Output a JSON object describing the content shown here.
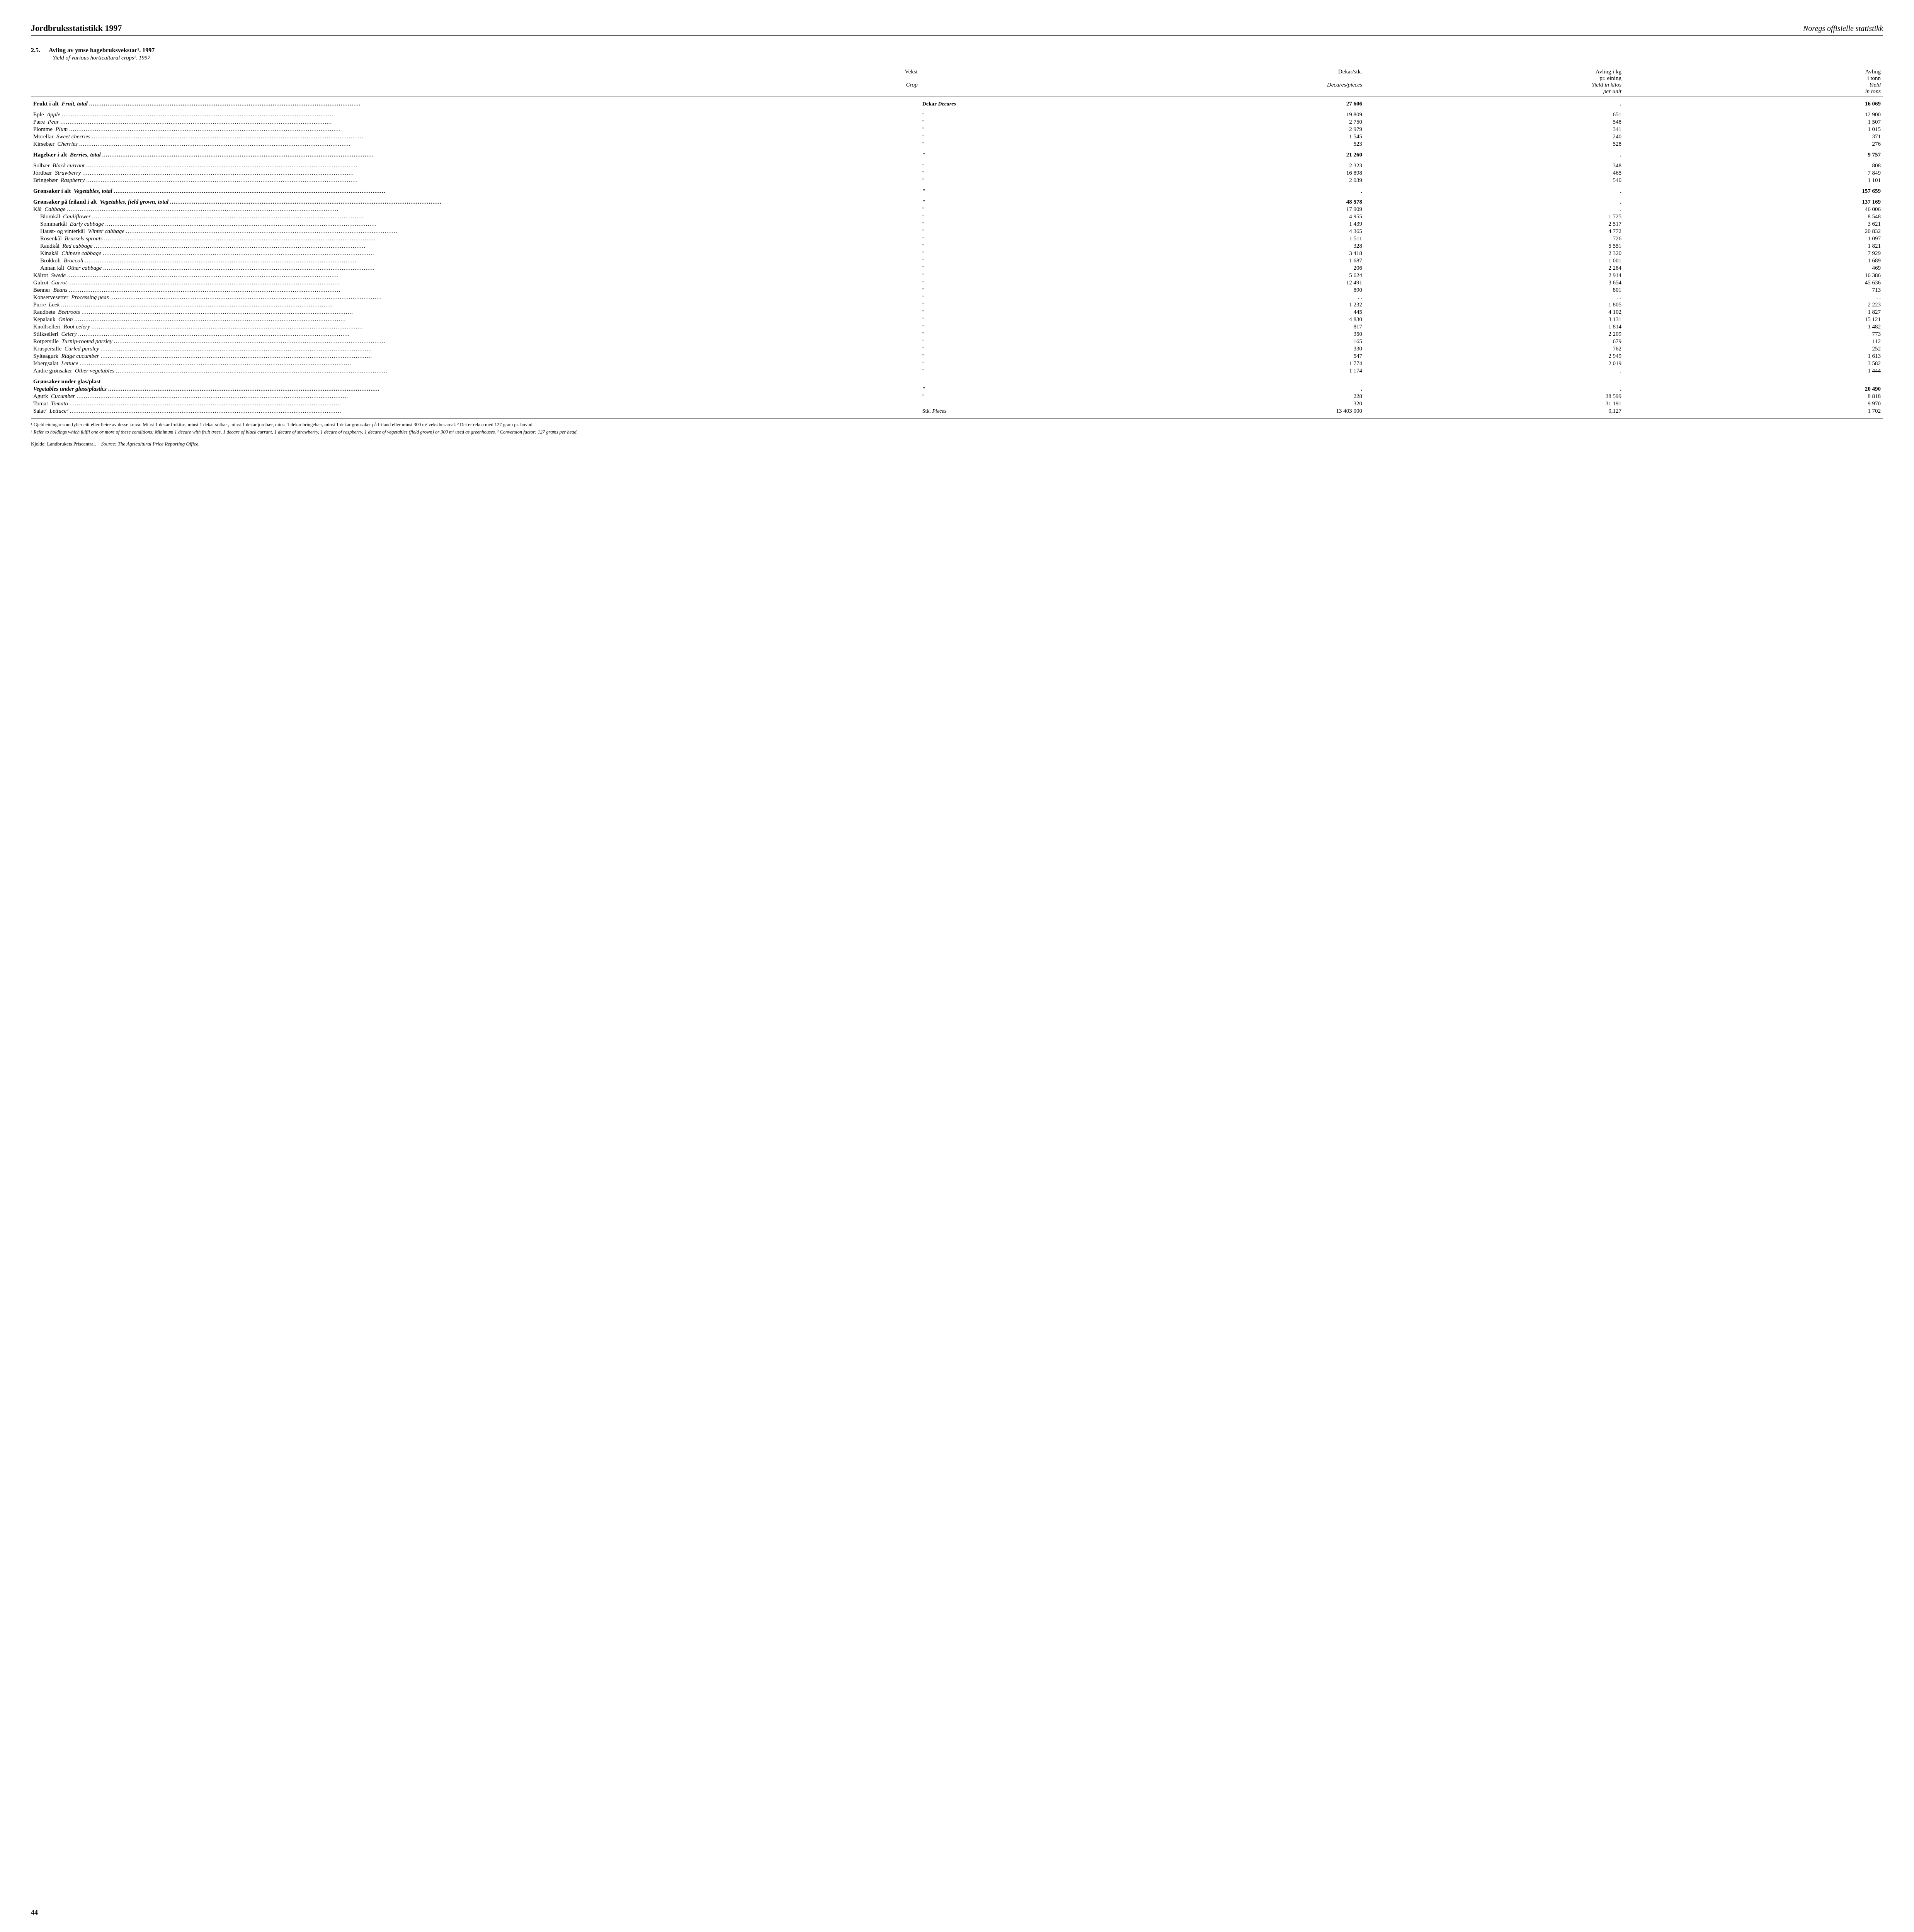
{
  "header": {
    "left": "Jordbruksstatistikk 1997",
    "right": "Noregs offisielle statistikk"
  },
  "section": {
    "number": "2.5.",
    "title_no": "Avling av ymse hagebruksvekstar¹. 1997",
    "title_en": "Yield of various horticultural crops¹. 1997"
  },
  "columns": {
    "crop_no": "Vekst",
    "crop_en": "Crop",
    "c1_no": "Dekar/stk.",
    "c1_en": "Decares/pieces",
    "c2_no": "Avling i kg pr. eining",
    "c2_en": "Yield in kilos per unit",
    "c3_no": "Avling i tonn",
    "c3_en": "Yield in tons"
  },
  "unit_labels": {
    "dekar": "Dekar",
    "decares": "Decares",
    "stk": "Stk.",
    "pieces": "Pieces",
    "ditto": "\""
  },
  "rows": [
    {
      "key": "fruit_total",
      "bold": true,
      "spacer": true,
      "no": "Frukt i alt",
      "en": "Fruit, total",
      "unit": "dekar",
      "c1": "27 606",
      "c2": ".",
      "c3": "16 069"
    },
    {
      "key": "apple",
      "spacer": true,
      "no": "Eple",
      "en": "Apple",
      "unit": "ditto",
      "c1": "19 809",
      "c2": "651",
      "c3": "12 900"
    },
    {
      "key": "pear",
      "no": "Pære",
      "en": "Pear",
      "unit": "ditto",
      "c1": "2 750",
      "c2": "548",
      "c3": "1 507"
    },
    {
      "key": "plum",
      "no": "Plomme",
      "en": "Plum",
      "unit": "ditto",
      "c1": "2 979",
      "c2": "341",
      "c3": "1 015"
    },
    {
      "key": "sweetcherry",
      "no": "Morellar",
      "en": "Sweet cherries",
      "unit": "ditto",
      "c1": "1 545",
      "c2": "240",
      "c3": "371"
    },
    {
      "key": "cherry",
      "no": "Kirsebær",
      "en": "Cherries",
      "unit": "ditto",
      "c1": "523",
      "c2": "528",
      "c3": "276"
    },
    {
      "key": "berries_total",
      "bold": true,
      "spacer": true,
      "no": "Hagebær i alt",
      "en": "Berries, total",
      "unit": "ditto",
      "c1": "21 260",
      "c2": ".",
      "c3": "9 757"
    },
    {
      "key": "blackcurrant",
      "spacer": true,
      "no": "Solbær",
      "en": "Black currant",
      "unit": "ditto",
      "c1": "2 323",
      "c2": "348",
      "c3": "808"
    },
    {
      "key": "strawberry",
      "no": "Jordbær",
      "en": "Strawberry",
      "unit": "ditto",
      "c1": "16 898",
      "c2": "465",
      "c3": "7 849"
    },
    {
      "key": "raspberry",
      "no": "Bringebær",
      "en": "Raspberry",
      "unit": "ditto",
      "c1": "2 039",
      "c2": "540",
      "c3": "1 101"
    },
    {
      "key": "veg_total",
      "bold": true,
      "spacer": true,
      "no": "Grønsaker i alt",
      "en": "Vegetables, total",
      "unit": "ditto",
      "c1": ".",
      "c2": ".",
      "c3": "157 659"
    },
    {
      "key": "veg_field_total",
      "bold": true,
      "spacer": true,
      "no": "Grønsaker på friland i alt",
      "en": "Vegetables, field grown, total",
      "unit": "ditto",
      "c1": "48 578",
      "c2": ".",
      "c3": "137 169"
    },
    {
      "key": "cabbage",
      "no": "Kål",
      "en": "Cabbage",
      "unit": "ditto",
      "c1": "17 909",
      "c2": ".",
      "c3": "46 006"
    },
    {
      "key": "cauliflower",
      "indent": true,
      "no": "Blomkål",
      "en": "Cauliflower",
      "unit": "ditto",
      "c1": "4 955",
      "c2": "1 725",
      "c3": "8 548"
    },
    {
      "key": "earlycabbage",
      "indent": true,
      "no": "Sommarkål",
      "en": "Early cabbage",
      "unit": "ditto",
      "c1": "1 439",
      "c2": "2 517",
      "c3": "3 621"
    },
    {
      "key": "wintercabbage",
      "indent": true,
      "no": "Haust- og vinterkål",
      "en": "Winter cabbage",
      "unit": "ditto",
      "c1": "4 365",
      "c2": "4 772",
      "c3": "20 832"
    },
    {
      "key": "brussels",
      "indent": true,
      "no": "Rosenkål",
      "en": "Brussels sprouts",
      "unit": "ditto",
      "c1": "1 511",
      "c2": "726",
      "c3": "1 097"
    },
    {
      "key": "redcabbage",
      "indent": true,
      "no": "Raudkål",
      "en": "Red cabbage",
      "unit": "ditto",
      "c1": "328",
      "c2": "5 551",
      "c3": "1 821"
    },
    {
      "key": "chinesecabbage",
      "indent": true,
      "no": "Kinakål",
      "en": "Chinese cabbage",
      "unit": "ditto",
      "c1": "3 418",
      "c2": "2 320",
      "c3": "7 929"
    },
    {
      "key": "broccoli",
      "indent": true,
      "no": "Brokkoli",
      "en": "Broccoli",
      "unit": "ditto",
      "c1": "1 687",
      "c2": "1 001",
      "c3": "1 689"
    },
    {
      "key": "othercabbage",
      "indent": true,
      "no": "Annan kål",
      "en": "Other cabbage",
      "unit": "ditto",
      "c1": "206",
      "c2": "2 284",
      "c3": "469"
    },
    {
      "key": "swede",
      "no": "Kålrot",
      "en": "Swede",
      "unit": "ditto",
      "c1": "5 624",
      "c2": "2 914",
      "c3": "16 386"
    },
    {
      "key": "carrot",
      "no": "Gulrot",
      "en": "Carrot",
      "unit": "ditto",
      "c1": "12 491",
      "c2": "3 654",
      "c3": "45 636"
    },
    {
      "key": "beans",
      "no": "Bønner",
      "en": "Beans",
      "unit": "ditto",
      "c1": "890",
      "c2": "801",
      "c3": "713"
    },
    {
      "key": "peas",
      "no": "Konserveserter",
      "en": "Processing peas",
      "unit": "ditto",
      "c1": ". .",
      "c2": ". .",
      "c3": ". ."
    },
    {
      "key": "leek",
      "no": "Purre",
      "en": "Leek",
      "unit": "ditto",
      "c1": "1 232",
      "c2": "1 805",
      "c3": "2 223"
    },
    {
      "key": "beetroot",
      "no": "Raudbete",
      "en": "Beetroots",
      "unit": "ditto",
      "c1": "445",
      "c2": "4 102",
      "c3": "1 827"
    },
    {
      "key": "onion",
      "no": "Kepalauk",
      "en": "Onion",
      "unit": "ditto",
      "c1": "4 830",
      "c2": "3 131",
      "c3": "15 121"
    },
    {
      "key": "rootcelery",
      "no": "Knollselleri",
      "en": "Root celery",
      "unit": "ditto",
      "c1": "817",
      "c2": "1 814",
      "c3": "1 482"
    },
    {
      "key": "celery",
      "no": "Stilkselleri",
      "en": "Celery",
      "unit": "ditto",
      "c1": "350",
      "c2": "2 209",
      "c3": "773"
    },
    {
      "key": "turnipparsley",
      "no": "Rotpersille",
      "en": "Turnip-rooted parsley",
      "unit": "ditto",
      "c1": "165",
      "c2": "679",
      "c3": "112"
    },
    {
      "key": "curledparsley",
      "no": "Kruspersille",
      "en": "Curled parsley",
      "unit": "ditto",
      "c1": "330",
      "c2": "762",
      "c3": "252"
    },
    {
      "key": "ridgecucumber",
      "no": "Sylteagurk",
      "en": "Ridge cucumber",
      "unit": "ditto",
      "c1": "547",
      "c2": "2 949",
      "c3": "1 613"
    },
    {
      "key": "lettuce",
      "no": "Isbergsalat",
      "en": "Lettuce",
      "unit": "ditto",
      "c1": "1 774",
      "c2": "2 019",
      "c3": "3 582"
    },
    {
      "key": "otherveg",
      "no": "Andre grønsaker",
      "en": "Other vegetables",
      "unit": "ditto",
      "c1": "1 174",
      "c2": ".",
      "c3": "1 444"
    },
    {
      "key": "glass_header",
      "bold": true,
      "spacer": true,
      "header_only": true,
      "no": "Grønsaker under glas/plast",
      "en": ""
    },
    {
      "key": "glass_total",
      "bold": true,
      "en_only": true,
      "no": "",
      "en": "Vegetables under glass/plastics",
      "unit": "ditto",
      "c1": ".",
      "c2": ".",
      "c3": "20 490"
    },
    {
      "key": "cucumber",
      "no": "Agurk",
      "en": "Cucumber",
      "unit": "ditto",
      "c1": "228",
      "c2": "38 599",
      "c3": "8 818"
    },
    {
      "key": "tomato",
      "no": "Tomat",
      "en": "Tomato",
      "unit": "",
      "c1": "320",
      "c2": "31 191",
      "c3": "9 970"
    },
    {
      "key": "lettuce2",
      "no": "Salat²",
      "en": "Lettuce²",
      "unit": "stk",
      "c1": "13 403 000",
      "c2": "0,127",
      "c3": "1 702"
    }
  ],
  "footnotes": {
    "f1_no": "¹ Gjeld einingar som fyller eitt eller fleire av desse krava: Minst 1 dekar frukttre, minst 1 dekar solbær, minst 1 dekar jordbær, minst 1 dekar bringebær, minst 1 dekar grønsaker på friland eller minst 300 m² veksthusareal. ² Det er rekna med 127 gram pr. hovud.",
    "f1_en": "¹ Refer to holdings which fulfil one or more of these conditions: Minimum 1 decare with fruit trees, 1 decare of black currant, 1 decare of strawberry, 1 decare of raspberry, 1 decare of vegetables (field grown) or 300 m² used as greenhouses. ² Conversion factor: 127 grams per head."
  },
  "source": {
    "no": "Kjelde: Landbrukets Priscentral.",
    "en": "Source: The Agricultural Price Reporting Office."
  },
  "page_number": "44"
}
